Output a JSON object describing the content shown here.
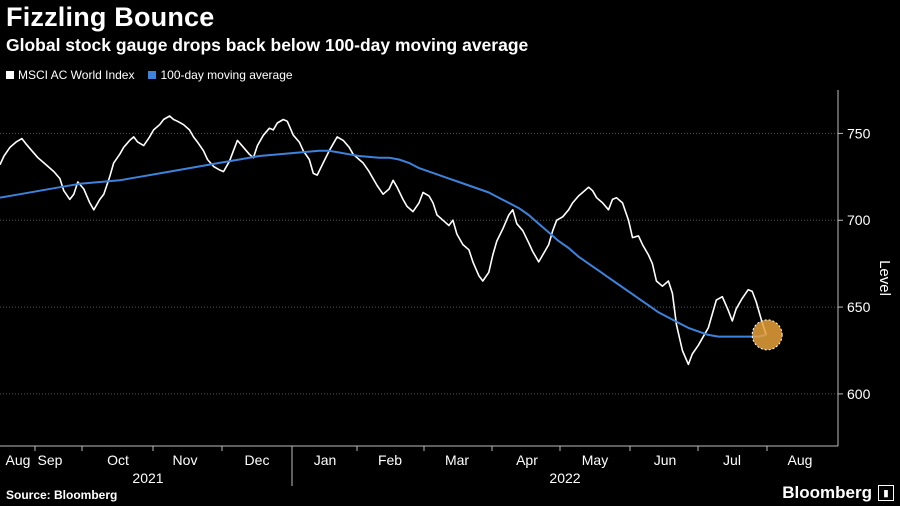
{
  "header": {
    "title": "Fizzling Bounce",
    "subtitle": "Global stock gauge drops back below 100-day moving average"
  },
  "footer": {
    "source": "Source: Bloomberg",
    "brand": "Bloomberg"
  },
  "chart_data": {
    "type": "line",
    "ylabel": "Level",
    "ylim": [
      570,
      775
    ],
    "yticks": [
      600,
      650,
      700,
      750
    ],
    "grid": true,
    "legend_position": "top-left",
    "x_months": [
      "Aug",
      "Sep",
      "Oct",
      "Nov",
      "Dec",
      "Jan",
      "Feb",
      "Mar",
      "Apr",
      "May",
      "Jun",
      "Jul",
      "Aug"
    ],
    "x_years": [
      "2021",
      "2022"
    ],
    "highlight": {
      "x": 384.5,
      "y": 634,
      "color": "#e8a23a"
    },
    "series": [
      {
        "name": "MSCI AC World Index",
        "color": "#ffffff",
        "x": [
          0,
          2,
          5,
          8,
          11,
          13,
          16,
          19,
          22,
          25,
          27,
          30,
          32,
          35,
          37,
          39,
          42,
          45,
          47,
          50,
          52,
          55,
          57,
          60,
          62,
          65,
          67,
          69,
          72,
          75,
          77,
          80,
          82,
          85,
          87,
          89,
          92,
          95,
          97,
          99,
          102,
          104,
          107,
          110,
          112,
          115,
          117,
          119,
          122,
          125,
          127,
          129,
          132,
          135,
          137,
          139,
          142,
          144,
          147,
          150,
          152,
          155,
          157,
          159,
          162,
          165,
          167,
          169,
          172,
          175,
          177,
          180,
          182,
          185,
          187,
          189,
          192,
          195,
          197,
          199,
          202,
          204,
          207,
          210,
          212,
          215,
          217,
          219,
          222,
          225,
          227,
          229,
          232,
          235,
          237,
          240,
          242,
          245,
          247,
          249,
          252,
          255,
          257,
          259,
          262,
          265,
          267,
          270,
          272,
          275,
          277,
          279,
          282,
          285,
          287,
          290,
          292,
          295,
          297,
          299,
          302,
          305,
          307,
          309,
          312,
          315,
          317,
          320,
          322,
          325,
          327,
          329,
          332,
          335,
          337,
          339,
          342,
          345,
          347,
          350,
          352,
          355,
          357,
          359,
          362,
          365,
          367,
          369,
          372,
          375,
          377,
          379,
          382,
          384
        ],
        "y": [
          732,
          737,
          742,
          745,
          747,
          744,
          740,
          736,
          733,
          730,
          728,
          724,
          717,
          712,
          715,
          722,
          718,
          710,
          706,
          712,
          715,
          725,
          733,
          738,
          742,
          746,
          748,
          745,
          743,
          748,
          752,
          755,
          758,
          760,
          758,
          757,
          755,
          752,
          748,
          745,
          740,
          735,
          731,
          729,
          728,
          734,
          740,
          746,
          742,
          738,
          736,
          743,
          749,
          753,
          752,
          756,
          758,
          757,
          749,
          745,
          740,
          735,
          727,
          726,
          733,
          740,
          744,
          748,
          746,
          742,
          738,
          735,
          733,
          728,
          724,
          720,
          715,
          718,
          723,
          719,
          712,
          708,
          705,
          710,
          716,
          714,
          710,
          703,
          700,
          697,
          700,
          692,
          686,
          683,
          676,
          668,
          665,
          670,
          680,
          688,
          695,
          703,
          706,
          698,
          694,
          687,
          682,
          676,
          680,
          686,
          694,
          700,
          702,
          706,
          710,
          714,
          716,
          719,
          717,
          713,
          710,
          706,
          712,
          713,
          710,
          700,
          690,
          691,
          686,
          680,
          675,
          665,
          662,
          665,
          658,
          640,
          625,
          617,
          623,
          628,
          632,
          638,
          646,
          654,
          656,
          648,
          642,
          649,
          655,
          660,
          659,
          653,
          641,
          634
        ]
      },
      {
        "name": "100-day moving average",
        "color": "#3d82db",
        "x": [
          0,
          10,
          20,
          30,
          40,
          50,
          60,
          70,
          80,
          90,
          100,
          110,
          120,
          130,
          140,
          150,
          155,
          160,
          165,
          170,
          175,
          180,
          185,
          190,
          195,
          200,
          205,
          210,
          215,
          220,
          225,
          230,
          235,
          240,
          245,
          250,
          255,
          260,
          265,
          270,
          275,
          280,
          285,
          290,
          295,
          300,
          305,
          310,
          315,
          320,
          325,
          330,
          335,
          340,
          345,
          350,
          355,
          360,
          365,
          370,
          375,
          380,
          384
        ],
        "y": [
          713,
          715,
          717,
          719,
          721,
          722,
          723,
          725,
          727,
          729,
          731,
          733,
          735,
          737,
          738,
          739,
          739.5,
          740,
          740,
          739,
          738,
          737,
          736.5,
          736,
          736,
          735,
          733,
          730,
          728,
          726,
          724,
          722,
          720,
          718,
          716,
          713,
          710,
          707,
          703,
          698,
          693,
          688,
          684,
          679,
          675,
          671,
          667,
          663,
          659,
          655,
          651,
          647,
          644,
          641,
          638,
          636,
          634,
          633,
          633,
          633,
          633,
          633,
          634
        ]
      }
    ]
  }
}
